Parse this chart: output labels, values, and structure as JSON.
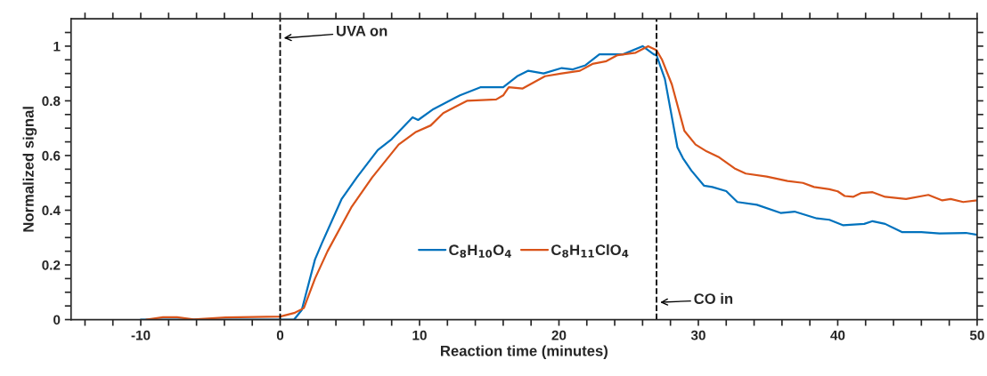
{
  "chart_data": {
    "type": "line",
    "xlabel": "Reaction time (minutes)",
    "ylabel": "Normalized signal",
    "xlim": [
      -15,
      50
    ],
    "ylim": [
      0,
      1.1
    ],
    "xticks": [
      {
        "value": -14,
        "label": null
      },
      {
        "value": -12,
        "label": null
      },
      -10,
      {
        "value": -8,
        "label": null
      },
      {
        "value": -6,
        "label": null
      },
      {
        "value": -4,
        "label": null
      },
      {
        "value": -2,
        "label": null
      },
      0,
      {
        "value": 2,
        "label": null
      },
      {
        "value": 4,
        "label": null
      },
      {
        "value": 6,
        "label": null
      },
      {
        "value": 8,
        "label": null
      },
      10,
      {
        "value": 12,
        "label": null
      },
      {
        "value": 14,
        "label": null
      },
      {
        "value": 16,
        "label": null
      },
      {
        "value": 18,
        "label": null
      },
      20,
      {
        "value": 22,
        "label": null
      },
      {
        "value": 24,
        "label": null
      },
      {
        "value": 26,
        "label": null
      },
      {
        "value": 28,
        "label": null
      },
      30,
      {
        "value": 32,
        "label": null
      },
      {
        "value": 34,
        "label": null
      },
      {
        "value": 36,
        "label": null
      },
      {
        "value": 38,
        "label": null
      },
      40,
      {
        "value": 42,
        "label": null
      },
      {
        "value": 44,
        "label": null
      },
      {
        "value": 46,
        "label": null
      },
      {
        "value": 48,
        "label": null
      },
      50
    ],
    "yticks": [
      0,
      {
        "value": 0.05,
        "label": null
      },
      {
        "value": 0.1,
        "label": null
      },
      {
        "value": 0.15,
        "label": null
      },
      0.2,
      {
        "value": 0.25,
        "label": null
      },
      {
        "value": 0.3,
        "label": null
      },
      {
        "value": 0.35,
        "label": null
      },
      0.4,
      {
        "value": 0.45,
        "label": null
      },
      {
        "value": 0.5,
        "label": null
      },
      {
        "value": 0.55,
        "label": null
      },
      0.6,
      {
        "value": 0.65,
        "label": null
      },
      {
        "value": 0.7,
        "label": null
      },
      {
        "value": 0.75,
        "label": null
      },
      0.8,
      {
        "value": 0.85,
        "label": null
      },
      {
        "value": 0.9,
        "label": null
      },
      {
        "value": 0.95,
        "label": null
      },
      1,
      {
        "value": 1.05,
        "label": null
      }
    ],
    "grid": false,
    "legend": "bottom",
    "line_style": "solid",
    "marker": "none",
    "series": [
      {
        "name": "C$_{8}$H$_{10}$O$_{4}$",
        "color": "#0072bd",
        "x": [
          -10,
          1.0,
          1.55,
          2.5,
          3.0,
          4.4,
          5.5,
          7.0,
          8.0,
          9.5,
          9.9,
          11.0,
          12.9,
          14.4,
          16.0,
          17.0,
          17.8,
          18.9,
          20.2,
          21.0,
          21.9,
          22.9,
          23.8,
          24.6,
          26.0,
          26.8,
          27.0,
          27.6,
          28.5,
          28.9,
          29.5,
          30.4,
          31.0,
          32.0,
          32.8,
          34.2,
          35.9,
          36.9,
          38.5,
          39.4,
          40.4,
          41.9,
          42.5,
          43.4,
          44.6,
          46.0,
          47.3,
          49.2,
          50.0
        ],
        "values": [
          0,
          0,
          0.035,
          0.22,
          0.28,
          0.44,
          0.52,
          0.62,
          0.66,
          0.74,
          0.73,
          0.77,
          0.82,
          0.85,
          0.85,
          0.89,
          0.91,
          0.9,
          0.92,
          0.915,
          0.93,
          0.97,
          0.97,
          0.97,
          1.0,
          0.97,
          0.967,
          0.88,
          0.63,
          0.59,
          0.545,
          0.49,
          0.485,
          0.47,
          0.43,
          0.42,
          0.39,
          0.395,
          0.37,
          0.365,
          0.345,
          0.35,
          0.36,
          0.35,
          0.32,
          0.32,
          0.315,
          0.317,
          0.31
        ]
      },
      {
        "name": "C$_{8}$H$_{11}$ClO$_{4}$",
        "color": "#d95319",
        "x": [
          -9.6,
          -8.4,
          -7.4,
          -6.2,
          -3.9,
          0,
          1.0,
          1.7,
          2.5,
          3.4,
          5.1,
          6.6,
          8.5,
          9.7,
          10.8,
          11.7,
          13.4,
          15.5,
          16.0,
          16.4,
          17.4,
          19.0,
          20.2,
          21.5,
          22.4,
          23.4,
          24.2,
          25.5,
          26.4,
          27.0,
          27.4,
          28.1,
          29.0,
          29.8,
          30.6,
          31.5,
          32.6,
          33.4,
          34.9,
          36.4,
          37.5,
          38.3,
          39.4,
          40.0,
          40.5,
          41.1,
          41.7,
          42.5,
          43.4,
          44.9,
          46.5,
          47.5,
          48.1,
          49.0,
          50.0
        ],
        "values": [
          0,
          0.009,
          0.009,
          0.001,
          0.008,
          0.011,
          0.024,
          0.042,
          0.15,
          0.25,
          0.41,
          0.52,
          0.64,
          0.685,
          0.71,
          0.755,
          0.8,
          0.805,
          0.82,
          0.85,
          0.845,
          0.89,
          0.9,
          0.91,
          0.935,
          0.945,
          0.967,
          0.976,
          1.0,
          0.985,
          0.95,
          0.86,
          0.69,
          0.64,
          0.615,
          0.593,
          0.553,
          0.534,
          0.523,
          0.507,
          0.5,
          0.485,
          0.477,
          0.469,
          0.452,
          0.449,
          0.463,
          0.466,
          0.449,
          0.441,
          0.456,
          0.436,
          0.441,
          0.43,
          0.436
        ]
      }
    ],
    "ref_lines": [
      {
        "axis": "x",
        "value": 0,
        "label": "UVA on",
        "color": "#000000",
        "line_style": "dashed"
      },
      {
        "axis": "x",
        "value": 27,
        "label": "CO in",
        "color": "#000000",
        "line_style": "dashed"
      }
    ]
  }
}
